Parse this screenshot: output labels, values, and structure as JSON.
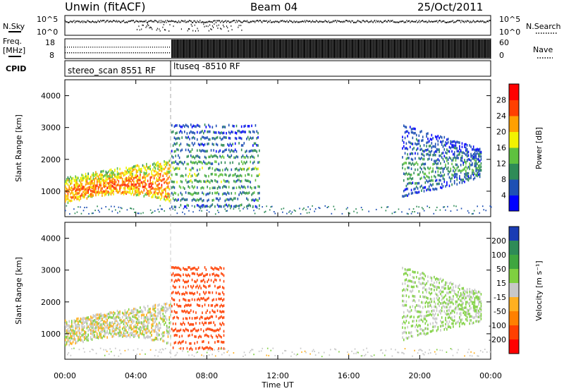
{
  "header": {
    "station": "Unwin (fitACF)",
    "beam": "Beam 04",
    "date": "25/Oct/2011"
  },
  "strip_labels": {
    "nsky": "N.Sky",
    "nsearch": "N.Search",
    "freq_line1": "Freq.",
    "freq_line2": "[MHz]",
    "nave": "Nave",
    "cpid": "CPID",
    "noise_ticks_left": [
      "10^5",
      "10^0"
    ],
    "noise_ticks_right": [
      "10^5",
      "10^0"
    ],
    "freq_ticks": [
      "18",
      "8"
    ],
    "nave_ticks": [
      "60",
      "0"
    ]
  },
  "cpid_blocks": [
    "stereo_scan 8551 RF",
    "ltuseq -8510 RF"
  ],
  "chart_data": [
    {
      "type": "heatmap",
      "title": "",
      "xlabel": "Time UT",
      "ylabel": "Slant Range [km]",
      "x_ticks": [
        "00:00",
        "04:00",
        "08:00",
        "12:00",
        "16:00",
        "20:00",
        "00:00"
      ],
      "xlim_hours": [
        0,
        24
      ],
      "y_ticks": [
        "1000",
        "2000",
        "3000",
        "4000"
      ],
      "ylim": [
        200,
        4500
      ],
      "colorbar": {
        "label": "Power [dB]",
        "ticks": [
          "4",
          "8",
          "12",
          "16",
          "20",
          "24",
          "28"
        ],
        "range": [
          0,
          32
        ],
        "colors": [
          "#0000ff",
          "#1e50b4",
          "#2e8b57",
          "#5fc13f",
          "#f2f200",
          "#ffa000",
          "#ff4000",
          "#ff0000"
        ]
      },
      "echo_regions": [
        {
          "t_start": 0.0,
          "t_end": 6.0,
          "range_low": 500,
          "range_high": 2100,
          "description_level": 22
        },
        {
          "t_start": 6.0,
          "t_end": 11.0,
          "range_low": 500,
          "range_high": 3200,
          "description_level": 10
        },
        {
          "t_start": 19.0,
          "t_end": 23.5,
          "range_low": 700,
          "range_high": 3300,
          "description_level": 8
        }
      ]
    },
    {
      "type": "heatmap",
      "title": "",
      "xlabel": "Time UT",
      "ylabel": "Slant Range [km]",
      "x_ticks": [
        "00:00",
        "04:00",
        "08:00",
        "12:00",
        "16:00",
        "20:00",
        "00:00"
      ],
      "xlim_hours": [
        0,
        24
      ],
      "y_ticks": [
        "1000",
        "2000",
        "3000",
        "4000"
      ],
      "ylim": [
        200,
        4500
      ],
      "colorbar": {
        "label": "Velocity [m s⁻¹]",
        "ticks": [
          "200",
          "100",
          "50",
          "15",
          "-15",
          "-50",
          "-100",
          "-200"
        ],
        "colors": [
          "#1a3cb4",
          "#2e8b57",
          "#3fa63f",
          "#7fd040",
          "#c8c8c8",
          "#ffb020",
          "#ff8000",
          "#ff4000",
          "#ff0000"
        ]
      },
      "echo_regions": [
        {
          "t_start": 0.0,
          "t_end": 6.0,
          "range_low": 500,
          "range_high": 2100,
          "description_level": 0
        },
        {
          "t_start": 6.0,
          "t_end": 9.0,
          "range_low": 500,
          "range_high": 3200,
          "description_level": -150
        },
        {
          "t_start": 19.0,
          "t_end": 23.5,
          "range_low": 700,
          "range_high": 3300,
          "description_level": 20
        }
      ]
    }
  ]
}
